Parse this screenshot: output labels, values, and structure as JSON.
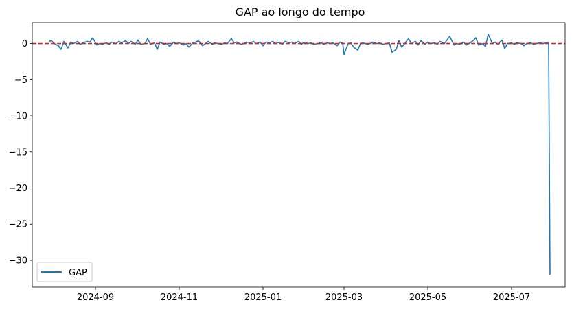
{
  "chart_data": {
    "type": "line",
    "title": "GAP ao longo do tempo",
    "xlabel": "",
    "ylabel": "",
    "xlim": [
      "2024-07-17",
      "2025-08-09"
    ],
    "ylim": [
      -33.7,
      2.9
    ],
    "x_ticks": [
      {
        "date": "2024-09-01",
        "label": "2024-09"
      },
      {
        "date": "2024-11-01",
        "label": "2024-11"
      },
      {
        "date": "2025-01-01",
        "label": "2025-01"
      },
      {
        "date": "2025-03-01",
        "label": "2025-03"
      },
      {
        "date": "2025-05-01",
        "label": "2025-05"
      },
      {
        "date": "2025-07-01",
        "label": "2025-07"
      }
    ],
    "y_ticks": [
      {
        "value": 0,
        "label": "0"
      },
      {
        "value": -5,
        "label": "−5"
      },
      {
        "value": -10,
        "label": "−10"
      },
      {
        "value": -15,
        "label": "−15"
      },
      {
        "value": -20,
        "label": "−20"
      },
      {
        "value": -25,
        "label": "−25"
      },
      {
        "value": -30,
        "label": "−30"
      }
    ],
    "grid": false,
    "legend": {
      "position": "bottom-left",
      "entries": [
        "GAP"
      ]
    },
    "reference_line": {
      "y": 0,
      "color": "#d62728",
      "style": "dashed"
    },
    "series": [
      {
        "name": "GAP",
        "color": "#1f77b4",
        "points": [
          [
            "2024-07-29",
            0.3
          ],
          [
            "2024-07-31",
            0.4
          ],
          [
            "2024-08-02",
            0.0
          ],
          [
            "2024-08-05",
            -0.3
          ],
          [
            "2024-08-07",
            -0.8
          ],
          [
            "2024-08-09",
            0.3
          ],
          [
            "2024-08-12",
            -0.6
          ],
          [
            "2024-08-14",
            0.2
          ],
          [
            "2024-08-16",
            0.0
          ],
          [
            "2024-08-19",
            0.3
          ],
          [
            "2024-08-21",
            -0.1
          ],
          [
            "2024-08-23",
            0.1
          ],
          [
            "2024-08-26",
            0.3
          ],
          [
            "2024-08-28",
            0.2
          ],
          [
            "2024-08-30",
            0.8
          ],
          [
            "2024-09-02",
            -0.2
          ],
          [
            "2024-09-04",
            0.0
          ],
          [
            "2024-09-06",
            -0.1
          ],
          [
            "2024-09-09",
            0.1
          ],
          [
            "2024-09-11",
            -0.1
          ],
          [
            "2024-09-13",
            0.2
          ],
          [
            "2024-09-16",
            0.0
          ],
          [
            "2024-09-18",
            0.3
          ],
          [
            "2024-09-20",
            0.1
          ],
          [
            "2024-09-23",
            0.4
          ],
          [
            "2024-09-25",
            0.0
          ],
          [
            "2024-09-27",
            0.3
          ],
          [
            "2024-09-30",
            -0.1
          ],
          [
            "2024-10-02",
            0.5
          ],
          [
            "2024-10-04",
            -0.1
          ],
          [
            "2024-10-07",
            0.0
          ],
          [
            "2024-10-09",
            0.7
          ],
          [
            "2024-10-11",
            -0.1
          ],
          [
            "2024-10-14",
            0.1
          ],
          [
            "2024-10-16",
            -0.8
          ],
          [
            "2024-10-18",
            0.2
          ],
          [
            "2024-10-21",
            -0.1
          ],
          [
            "2024-10-23",
            0.0
          ],
          [
            "2024-10-25",
            -0.4
          ],
          [
            "2024-10-28",
            0.2
          ],
          [
            "2024-10-30",
            0.0
          ],
          [
            "2024-11-01",
            0.1
          ],
          [
            "2024-11-04",
            -0.2
          ],
          [
            "2024-11-06",
            0.0
          ],
          [
            "2024-11-08",
            -0.5
          ],
          [
            "2024-11-11",
            0.1
          ],
          [
            "2024-11-13",
            0.2
          ],
          [
            "2024-11-15",
            0.4
          ],
          [
            "2024-11-18",
            -0.3
          ],
          [
            "2024-11-20",
            0.0
          ],
          [
            "2024-11-22",
            0.3
          ],
          [
            "2024-11-25",
            -0.1
          ],
          [
            "2024-11-27",
            0.1
          ],
          [
            "2024-11-29",
            0.0
          ],
          [
            "2024-12-02",
            -0.1
          ],
          [
            "2024-12-04",
            0.1
          ],
          [
            "2024-12-06",
            0.0
          ],
          [
            "2024-12-09",
            0.7
          ],
          [
            "2024-12-11",
            0.1
          ],
          [
            "2024-12-13",
            0.2
          ],
          [
            "2024-12-16",
            -0.1
          ],
          [
            "2024-12-18",
            0.0
          ],
          [
            "2024-12-20",
            0.2
          ],
          [
            "2024-12-23",
            0.1
          ],
          [
            "2024-12-25",
            0.3
          ],
          [
            "2024-12-27",
            0.0
          ],
          [
            "2024-12-30",
            0.2
          ],
          [
            "2025-01-01",
            -0.3
          ],
          [
            "2025-01-03",
            0.2
          ],
          [
            "2025-01-06",
            0.1
          ],
          [
            "2025-01-08",
            0.3
          ],
          [
            "2025-01-10",
            0.0
          ],
          [
            "2025-01-13",
            0.2
          ],
          [
            "2025-01-15",
            -0.1
          ],
          [
            "2025-01-17",
            0.3
          ],
          [
            "2025-01-20",
            0.1
          ],
          [
            "2025-01-22",
            0.2
          ],
          [
            "2025-01-24",
            0.0
          ],
          [
            "2025-01-27",
            0.3
          ],
          [
            "2025-01-29",
            -0.1
          ],
          [
            "2025-01-31",
            0.2
          ],
          [
            "2025-02-03",
            0.0
          ],
          [
            "2025-02-05",
            0.1
          ],
          [
            "2025-02-07",
            -0.1
          ],
          [
            "2025-02-10",
            0.0
          ],
          [
            "2025-02-12",
            0.2
          ],
          [
            "2025-02-14",
            -0.1
          ],
          [
            "2025-02-17",
            0.1
          ],
          [
            "2025-02-19",
            0.0
          ],
          [
            "2025-02-21",
            0.1
          ],
          [
            "2025-02-24",
            -0.3
          ],
          [
            "2025-02-26",
            0.2
          ],
          [
            "2025-02-28",
            0.1
          ],
          [
            "2025-03-01",
            -1.5
          ],
          [
            "2025-03-04",
            0.0
          ],
          [
            "2025-03-06",
            0.1
          ],
          [
            "2025-03-08",
            -0.5
          ],
          [
            "2025-03-11",
            -0.9
          ],
          [
            "2025-03-13",
            0.0
          ],
          [
            "2025-03-15",
            0.1
          ],
          [
            "2025-03-18",
            -0.1
          ],
          [
            "2025-03-20",
            0.0
          ],
          [
            "2025-03-22",
            0.2
          ],
          [
            "2025-03-25",
            0.0
          ],
          [
            "2025-03-27",
            0.1
          ],
          [
            "2025-03-29",
            -0.1
          ],
          [
            "2025-04-01",
            0.0
          ],
          [
            "2025-04-03",
            0.1
          ],
          [
            "2025-04-05",
            -1.2
          ],
          [
            "2025-04-08",
            -0.8
          ],
          [
            "2025-04-10",
            0.4
          ],
          [
            "2025-04-12",
            -0.5
          ],
          [
            "2025-04-15",
            0.2
          ],
          [
            "2025-04-17",
            0.7
          ],
          [
            "2025-04-19",
            0.0
          ],
          [
            "2025-04-22",
            0.3
          ],
          [
            "2025-04-24",
            -0.2
          ],
          [
            "2025-04-26",
            0.4
          ],
          [
            "2025-04-29",
            -0.1
          ],
          [
            "2025-05-01",
            0.2
          ],
          [
            "2025-05-03",
            0.0
          ],
          [
            "2025-05-06",
            0.1
          ],
          [
            "2025-05-08",
            -0.1
          ],
          [
            "2025-05-10",
            0.3
          ],
          [
            "2025-05-13",
            0.0
          ],
          [
            "2025-05-15",
            0.5
          ],
          [
            "2025-05-17",
            1.0
          ],
          [
            "2025-05-20",
            -0.2
          ],
          [
            "2025-05-22",
            0.0
          ],
          [
            "2025-05-24",
            -0.1
          ],
          [
            "2025-05-27",
            0.2
          ],
          [
            "2025-05-29",
            -0.2
          ],
          [
            "2025-05-31",
            0.0
          ],
          [
            "2025-06-03",
            0.4
          ],
          [
            "2025-06-05",
            0.8
          ],
          [
            "2025-06-07",
            -0.2
          ],
          [
            "2025-06-10",
            0.0
          ],
          [
            "2025-06-12",
            -0.4
          ],
          [
            "2025-06-14",
            1.3
          ],
          [
            "2025-06-17",
            0.0
          ],
          [
            "2025-06-19",
            0.2
          ],
          [
            "2025-06-21",
            -0.1
          ],
          [
            "2025-06-24",
            0.5
          ],
          [
            "2025-06-26",
            -0.7
          ],
          [
            "2025-06-28",
            0.0
          ],
          [
            "2025-07-01",
            0.1
          ],
          [
            "2025-07-03",
            -0.1
          ],
          [
            "2025-07-05",
            0.1
          ],
          [
            "2025-07-08",
            0.0
          ],
          [
            "2025-07-10",
            -0.3
          ],
          [
            "2025-07-12",
            0.0
          ],
          [
            "2025-07-15",
            0.1
          ],
          [
            "2025-07-17",
            -0.1
          ],
          [
            "2025-07-19",
            0.0
          ],
          [
            "2025-07-22",
            0.1
          ],
          [
            "2025-07-24",
            0.0
          ],
          [
            "2025-07-26",
            0.1
          ],
          [
            "2025-07-28",
            0.2
          ],
          [
            "2025-07-29",
            -32.0
          ]
        ]
      }
    ]
  }
}
